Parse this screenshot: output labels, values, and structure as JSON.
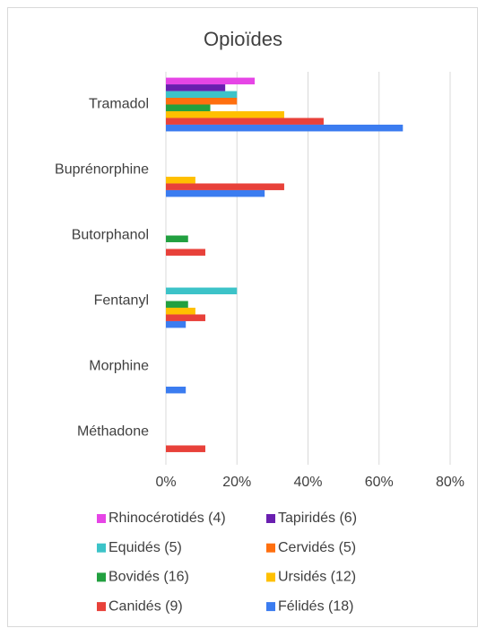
{
  "chart_data": {
    "type": "hbar",
    "title": "Opioïdes",
    "categories": [
      "Tramadol",
      "Buprénorphine",
      "Butorphanol",
      "Fentanyl",
      "Morphine",
      "Méthadone"
    ],
    "series": [
      {
        "name": "Rhinocérotidés (4)",
        "color": "#e645e6",
        "values": [
          25,
          0,
          0,
          0,
          0,
          0
        ]
      },
      {
        "name": "Tapiridés (6)",
        "color": "#6a1fb0",
        "values": [
          16.7,
          0,
          0,
          0,
          0,
          0
        ]
      },
      {
        "name": "Equidés (5)",
        "color": "#3cc3c8",
        "values": [
          20,
          0,
          0,
          20,
          0,
          0
        ]
      },
      {
        "name": "Cervidés (5)",
        "color": "#ff6f0f",
        "values": [
          20,
          0,
          0,
          0,
          0,
          0
        ]
      },
      {
        "name": "Bovidés (16)",
        "color": "#22a040",
        "values": [
          12.5,
          0,
          6.25,
          6.25,
          0,
          0
        ]
      },
      {
        "name": "Ursidés (12)",
        "color": "#ffc000",
        "values": [
          33.3,
          8.3,
          0,
          8.3,
          0,
          0
        ]
      },
      {
        "name": "Canidés (9)",
        "color": "#e8413a",
        "values": [
          44.4,
          33.3,
          11.1,
          11.1,
          0,
          11.1
        ]
      },
      {
        "name": "Félidés (18)",
        "color": "#3b7cf0",
        "values": [
          66.7,
          27.8,
          0,
          5.6,
          5.6,
          0
        ]
      }
    ],
    "xlim": [
      0,
      80
    ],
    "xticks": [
      {
        "value": 0,
        "label": "0%"
      },
      {
        "value": 20,
        "label": "20%"
      },
      {
        "value": 40,
        "label": "40%"
      },
      {
        "value": 60,
        "label": "60%"
      },
      {
        "value": 80,
        "label": "80%"
      }
    ],
    "grid": true,
    "legend": "bottom"
  }
}
